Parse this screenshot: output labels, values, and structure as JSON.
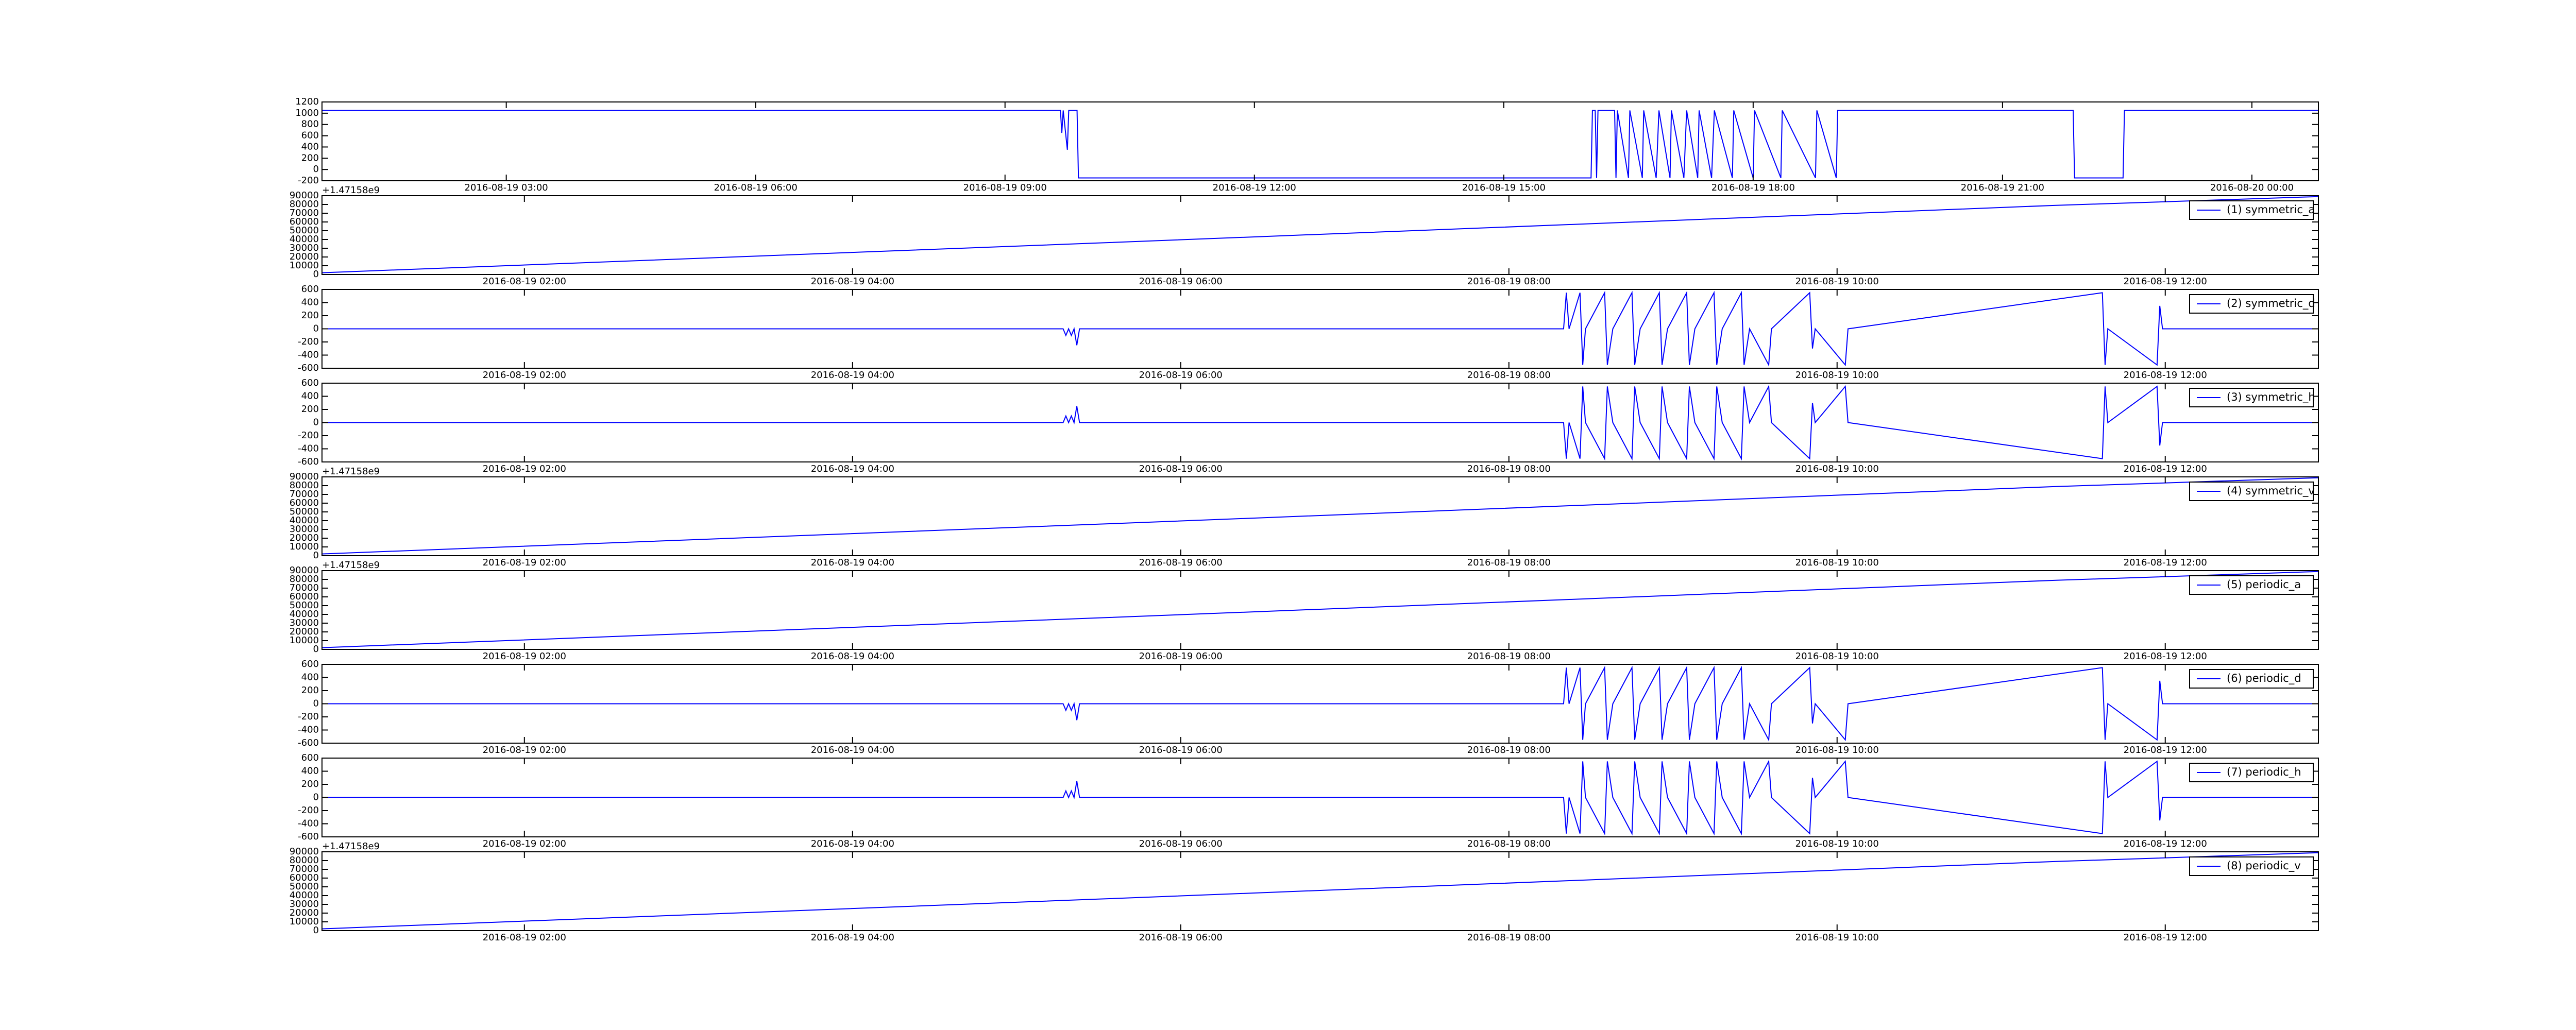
{
  "chart_data": [
    {
      "type": "line",
      "x": [
        "2016-08-19 00:47",
        "2016-08-19 09:40",
        "2016-08-19 09:41",
        "2016-08-19 09:42",
        "2016-08-19 09:45",
        "2016-08-19 09:46",
        "2016-08-19 09:52",
        "2016-08-19 09:53",
        "2016-08-19 16:03",
        "2016-08-19 16:04",
        "2016-08-19 16:06",
        "2016-08-19 16:07",
        "2016-08-19 16:08",
        "2016-08-19 16:20",
        "2016-08-19 16:21",
        "2016-08-19 16:22",
        "2016-08-19 16:30",
        "2016-08-19 16:31",
        "2016-08-19 16:40",
        "2016-08-19 16:41",
        "2016-08-19 16:50",
        "2016-08-19 16:52",
        "2016-08-19 17:00",
        "2016-08-19 17:01",
        "2016-08-19 17:10",
        "2016-08-19 17:12",
        "2016-08-19 17:20",
        "2016-08-19 17:21",
        "2016-08-19 17:30",
        "2016-08-19 17:32",
        "2016-08-19 17:45",
        "2016-08-19 17:46",
        "2016-08-19 18:00",
        "2016-08-19 18:01",
        "2016-08-19 18:20",
        "2016-08-19 18:21",
        "2016-08-19 18:45",
        "2016-08-19 18:46",
        "2016-08-19 19:00",
        "2016-08-19 19:01",
        "2016-08-19 21:51",
        "2016-08-19 21:52",
        "2016-08-19 22:27",
        "2016-08-19 22:28",
        "2016-08-20 00:48"
      ],
      "series": [
        {
          "color": "#0000ff",
          "values": [
            1050,
            1050,
            650,
            1050,
            350,
            1050,
            1050,
            -150,
            -150,
            1050,
            1050,
            -150,
            1050,
            1050,
            -150,
            1050,
            -150,
            1050,
            -150,
            1050,
            -150,
            1050,
            -150,
            1050,
            -150,
            1050,
            -150,
            1050,
            -150,
            1050,
            -150,
            1050,
            -150,
            1050,
            -150,
            1050,
            -150,
            1050,
            -150,
            1050,
            1050,
            -150,
            -150,
            1050,
            1050
          ]
        }
      ],
      "xlim": [
        "2016-08-19 00:47",
        "2016-08-20 00:48"
      ],
      "xticks": [
        "2016-08-19 03:00",
        "2016-08-19 06:00",
        "2016-08-19 09:00",
        "2016-08-19 12:00",
        "2016-08-19 15:00",
        "2016-08-19 18:00",
        "2016-08-19 21:00",
        "2016-08-20 00:00"
      ],
      "ylim": [
        -200,
        1200
      ],
      "yticks": [
        -200,
        0,
        200,
        400,
        600,
        800,
        1000,
        1200
      ]
    },
    {
      "type": "line",
      "x": [
        "2016-08-19 00:46",
        "2016-08-19 05:30",
        "2016-08-19 08:30",
        "2016-08-19 11:20",
        "2016-08-19 11:40",
        "2016-08-19 12:56"
      ],
      "series": [
        {
          "name": "(1) symmetric_a",
          "color": "#0000ff",
          "values": [
            2000,
            36000,
            58000,
            79000,
            81000,
            89000
          ]
        }
      ],
      "xlim": [
        "2016-08-19 00:46",
        "2016-08-19 12:56"
      ],
      "xticks": [
        "2016-08-19 02:00",
        "2016-08-19 04:00",
        "2016-08-19 06:00",
        "2016-08-19 08:00",
        "2016-08-19 10:00",
        "2016-08-19 12:00"
      ],
      "ylim": [
        0,
        90000
      ],
      "yticks": [
        0,
        10000,
        20000,
        30000,
        40000,
        50000,
        60000,
        70000,
        80000,
        90000
      ],
      "offset_text": "+1.47158e9",
      "legend": "upper right"
    },
    {
      "type": "line",
      "x": [
        "2016-08-19 00:46",
        "2016-08-19 05:17",
        "2016-08-19 05:18",
        "2016-08-19 05:19",
        "2016-08-19 05:20",
        "2016-08-19 05:21",
        "2016-08-19 05:22",
        "2016-08-19 05:23",
        "2016-08-19 08:20",
        "2016-08-19 08:21",
        "2016-08-19 08:22",
        "2016-08-19 08:26",
        "2016-08-19 08:27",
        "2016-08-19 08:28",
        "2016-08-19 08:35",
        "2016-08-19 08:36",
        "2016-08-19 08:38",
        "2016-08-19 08:45",
        "2016-08-19 08:46",
        "2016-08-19 08:48",
        "2016-08-19 08:55",
        "2016-08-19 08:56",
        "2016-08-19 08:58",
        "2016-08-19 09:05",
        "2016-08-19 09:06",
        "2016-08-19 09:08",
        "2016-08-19 09:15",
        "2016-08-19 09:16",
        "2016-08-19 09:18",
        "2016-08-19 09:25",
        "2016-08-19 09:26",
        "2016-08-19 09:28",
        "2016-08-19 09:35",
        "2016-08-19 09:36",
        "2016-08-19 09:50",
        "2016-08-19 09:51",
        "2016-08-19 09:52",
        "2016-08-19 10:03",
        "2016-08-19 10:04",
        "2016-08-19 11:37",
        "2016-08-19 11:38",
        "2016-08-19 11:39",
        "2016-08-19 11:57",
        "2016-08-19 11:58",
        "2016-08-19 11:59",
        "2016-08-19 12:56"
      ],
      "series": [
        {
          "name": "(2) symmetric_d",
          "color": "#0000ff",
          "values": [
            0,
            0,
            -100,
            0,
            -100,
            0,
            -250,
            0,
            0,
            550,
            0,
            550,
            -550,
            0,
            550,
            -550,
            0,
            550,
            -550,
            0,
            550,
            -550,
            0,
            550,
            -550,
            0,
            550,
            -550,
            0,
            550,
            -550,
            0,
            -550,
            0,
            550,
            -300,
            0,
            -550,
            0,
            550,
            -550,
            0,
            -550,
            350,
            0,
            0
          ]
        }
      ],
      "xlim": [
        "2016-08-19 00:46",
        "2016-08-19 12:56"
      ],
      "xticks": [
        "2016-08-19 02:00",
        "2016-08-19 04:00",
        "2016-08-19 06:00",
        "2016-08-19 08:00",
        "2016-08-19 10:00",
        "2016-08-19 12:00"
      ],
      "ylim": [
        -600,
        600
      ],
      "yticks": [
        -600,
        -400,
        -200,
        0,
        200,
        400,
        600
      ],
      "legend": "upper right"
    },
    {
      "type": "line",
      "x": [
        "2016-08-19 00:46",
        "2016-08-19 05:17",
        "2016-08-19 05:18",
        "2016-08-19 05:19",
        "2016-08-19 05:20",
        "2016-08-19 05:21",
        "2016-08-19 05:22",
        "2016-08-19 05:23",
        "2016-08-19 08:20",
        "2016-08-19 08:21",
        "2016-08-19 08:22",
        "2016-08-19 08:26",
        "2016-08-19 08:27",
        "2016-08-19 08:28",
        "2016-08-19 08:35",
        "2016-08-19 08:36",
        "2016-08-19 08:38",
        "2016-08-19 08:45",
        "2016-08-19 08:46",
        "2016-08-19 08:48",
        "2016-08-19 08:55",
        "2016-08-19 08:56",
        "2016-08-19 08:58",
        "2016-08-19 09:05",
        "2016-08-19 09:06",
        "2016-08-19 09:08",
        "2016-08-19 09:15",
        "2016-08-19 09:16",
        "2016-08-19 09:18",
        "2016-08-19 09:25",
        "2016-08-19 09:26",
        "2016-08-19 09:28",
        "2016-08-19 09:35",
        "2016-08-19 09:36",
        "2016-08-19 09:50",
        "2016-08-19 09:51",
        "2016-08-19 09:52",
        "2016-08-19 10:03",
        "2016-08-19 10:04",
        "2016-08-19 11:37",
        "2016-08-19 11:38",
        "2016-08-19 11:39",
        "2016-08-19 11:57",
        "2016-08-19 11:58",
        "2016-08-19 11:59",
        "2016-08-19 12:56"
      ],
      "series": [
        {
          "name": "(3) symmetric_h",
          "color": "#0000ff",
          "values": [
            0,
            0,
            100,
            0,
            100,
            0,
            250,
            0,
            0,
            -550,
            0,
            -550,
            550,
            0,
            -550,
            550,
            0,
            -550,
            550,
            0,
            -550,
            550,
            0,
            -550,
            550,
            0,
            -550,
            550,
            0,
            -550,
            550,
            0,
            550,
            0,
            -550,
            300,
            0,
            550,
            0,
            -550,
            550,
            0,
            550,
            -350,
            0,
            0
          ]
        }
      ],
      "xlim": [
        "2016-08-19 00:46",
        "2016-08-19 12:56"
      ],
      "xticks": [
        "2016-08-19 02:00",
        "2016-08-19 04:00",
        "2016-08-19 06:00",
        "2016-08-19 08:00",
        "2016-08-19 10:00",
        "2016-08-19 12:00"
      ],
      "ylim": [
        -600,
        600
      ],
      "yticks": [
        -600,
        -400,
        -200,
        0,
        200,
        400,
        600
      ],
      "legend": "upper right"
    },
    {
      "type": "line",
      "x": [
        "2016-08-19 00:46",
        "2016-08-19 05:30",
        "2016-08-19 08:30",
        "2016-08-19 11:20",
        "2016-08-19 11:40",
        "2016-08-19 12:56"
      ],
      "series": [
        {
          "name": "(4) symmetric_v",
          "color": "#0000ff",
          "values": [
            2000,
            36000,
            58000,
            79000,
            81000,
            89000
          ]
        }
      ],
      "xlim": [
        "2016-08-19 00:46",
        "2016-08-19 12:56"
      ],
      "xticks": [
        "2016-08-19 02:00",
        "2016-08-19 04:00",
        "2016-08-19 06:00",
        "2016-08-19 08:00",
        "2016-08-19 10:00",
        "2016-08-19 12:00"
      ],
      "ylim": [
        0,
        90000
      ],
      "yticks": [
        0,
        10000,
        20000,
        30000,
        40000,
        50000,
        60000,
        70000,
        80000,
        90000
      ],
      "offset_text": "+1.47158e9",
      "legend": "upper right"
    },
    {
      "type": "line",
      "x": [
        "2016-08-19 00:46",
        "2016-08-19 05:30",
        "2016-08-19 08:30",
        "2016-08-19 11:20",
        "2016-08-19 11:40",
        "2016-08-19 12:56"
      ],
      "series": [
        {
          "name": "(5) periodic_a",
          "color": "#0000ff",
          "values": [
            2000,
            36000,
            58000,
            79000,
            81000,
            89000
          ]
        }
      ],
      "xlim": [
        "2016-08-19 00:46",
        "2016-08-19 12:56"
      ],
      "xticks": [
        "2016-08-19 02:00",
        "2016-08-19 04:00",
        "2016-08-19 06:00",
        "2016-08-19 08:00",
        "2016-08-19 10:00",
        "2016-08-19 12:00"
      ],
      "ylim": [
        0,
        90000
      ],
      "yticks": [
        0,
        10000,
        20000,
        30000,
        40000,
        50000,
        60000,
        70000,
        80000,
        90000
      ],
      "offset_text": "+1.47158e9",
      "legend": "upper right"
    },
    {
      "type": "line",
      "x": [
        "2016-08-19 00:46",
        "2016-08-19 05:17",
        "2016-08-19 05:18",
        "2016-08-19 05:19",
        "2016-08-19 05:20",
        "2016-08-19 05:21",
        "2016-08-19 05:22",
        "2016-08-19 05:23",
        "2016-08-19 08:20",
        "2016-08-19 08:21",
        "2016-08-19 08:22",
        "2016-08-19 08:26",
        "2016-08-19 08:27",
        "2016-08-19 08:28",
        "2016-08-19 08:35",
        "2016-08-19 08:36",
        "2016-08-19 08:38",
        "2016-08-19 08:45",
        "2016-08-19 08:46",
        "2016-08-19 08:48",
        "2016-08-19 08:55",
        "2016-08-19 08:56",
        "2016-08-19 08:58",
        "2016-08-19 09:05",
        "2016-08-19 09:06",
        "2016-08-19 09:08",
        "2016-08-19 09:15",
        "2016-08-19 09:16",
        "2016-08-19 09:18",
        "2016-08-19 09:25",
        "2016-08-19 09:26",
        "2016-08-19 09:28",
        "2016-08-19 09:35",
        "2016-08-19 09:36",
        "2016-08-19 09:50",
        "2016-08-19 09:51",
        "2016-08-19 09:52",
        "2016-08-19 10:03",
        "2016-08-19 10:04",
        "2016-08-19 11:37",
        "2016-08-19 11:38",
        "2016-08-19 11:39",
        "2016-08-19 11:57",
        "2016-08-19 11:58",
        "2016-08-19 11:59",
        "2016-08-19 12:56"
      ],
      "series": [
        {
          "name": "(6) periodic_d",
          "color": "#0000ff",
          "values": [
            0,
            0,
            -100,
            0,
            -100,
            0,
            -250,
            0,
            0,
            550,
            0,
            550,
            -550,
            0,
            550,
            -550,
            0,
            550,
            -550,
            0,
            550,
            -550,
            0,
            550,
            -550,
            0,
            550,
            -550,
            0,
            550,
            -550,
            0,
            -550,
            0,
            550,
            -300,
            0,
            -550,
            0,
            550,
            -550,
            0,
            -550,
            350,
            0,
            0
          ]
        }
      ],
      "xlim": [
        "2016-08-19 00:46",
        "2016-08-19 12:56"
      ],
      "xticks": [
        "2016-08-19 02:00",
        "2016-08-19 04:00",
        "2016-08-19 06:00",
        "2016-08-19 08:00",
        "2016-08-19 10:00",
        "2016-08-19 12:00"
      ],
      "ylim": [
        -600,
        600
      ],
      "yticks": [
        -600,
        -400,
        -200,
        0,
        200,
        400,
        600
      ],
      "legend": "upper right"
    },
    {
      "type": "line",
      "x": [
        "2016-08-19 00:46",
        "2016-08-19 05:17",
        "2016-08-19 05:18",
        "2016-08-19 05:19",
        "2016-08-19 05:20",
        "2016-08-19 05:21",
        "2016-08-19 05:22",
        "2016-08-19 05:23",
        "2016-08-19 08:20",
        "2016-08-19 08:21",
        "2016-08-19 08:22",
        "2016-08-19 08:26",
        "2016-08-19 08:27",
        "2016-08-19 08:28",
        "2016-08-19 08:35",
        "2016-08-19 08:36",
        "2016-08-19 08:38",
        "2016-08-19 08:45",
        "2016-08-19 08:46",
        "2016-08-19 08:48",
        "2016-08-19 08:55",
        "2016-08-19 08:56",
        "2016-08-19 08:58",
        "2016-08-19 09:05",
        "2016-08-19 09:06",
        "2016-08-19 09:08",
        "2016-08-19 09:15",
        "2016-08-19 09:16",
        "2016-08-19 09:18",
        "2016-08-19 09:25",
        "2016-08-19 09:26",
        "2016-08-19 09:28",
        "2016-08-19 09:35",
        "2016-08-19 09:36",
        "2016-08-19 09:50",
        "2016-08-19 09:51",
        "2016-08-19 09:52",
        "2016-08-19 10:03",
        "2016-08-19 10:04",
        "2016-08-19 11:37",
        "2016-08-19 11:38",
        "2016-08-19 11:39",
        "2016-08-19 11:57",
        "2016-08-19 11:58",
        "2016-08-19 11:59",
        "2016-08-19 12:56"
      ],
      "series": [
        {
          "name": "(7) periodic_h",
          "color": "#0000ff",
          "values": [
            0,
            0,
            100,
            0,
            100,
            0,
            250,
            0,
            0,
            -550,
            0,
            -550,
            550,
            0,
            -550,
            550,
            0,
            -550,
            550,
            0,
            -550,
            550,
            0,
            -550,
            550,
            0,
            -550,
            550,
            0,
            -550,
            550,
            0,
            550,
            0,
            -550,
            300,
            0,
            550,
            0,
            -550,
            550,
            0,
            550,
            -350,
            0,
            0
          ]
        }
      ],
      "xlim": [
        "2016-08-19 00:46",
        "2016-08-19 12:56"
      ],
      "xticks": [
        "2016-08-19 02:00",
        "2016-08-19 04:00",
        "2016-08-19 06:00",
        "2016-08-19 08:00",
        "2016-08-19 10:00",
        "2016-08-19 12:00"
      ],
      "ylim": [
        -600,
        600
      ],
      "yticks": [
        -600,
        -400,
        -200,
        0,
        200,
        400,
        600
      ],
      "legend": "upper right"
    },
    {
      "type": "line",
      "x": [
        "2016-08-19 00:46",
        "2016-08-19 05:30",
        "2016-08-19 08:30",
        "2016-08-19 11:20",
        "2016-08-19 11:40",
        "2016-08-19 12:56"
      ],
      "series": [
        {
          "name": "(8) periodic_v",
          "color": "#0000ff",
          "values": [
            2000,
            36000,
            58000,
            79000,
            81000,
            89000
          ]
        }
      ],
      "xlim": [
        "2016-08-19 00:46",
        "2016-08-19 12:56"
      ],
      "xticks": [
        "2016-08-19 02:00",
        "2016-08-19 04:00",
        "2016-08-19 06:00",
        "2016-08-19 08:00",
        "2016-08-19 10:00",
        "2016-08-19 12:00"
      ],
      "ylim": [
        0,
        90000
      ],
      "yticks": [
        0,
        10000,
        20000,
        30000,
        40000,
        50000,
        60000,
        70000,
        80000,
        90000
      ],
      "offset_text": "+1.47158e9",
      "legend": "upper right"
    }
  ]
}
